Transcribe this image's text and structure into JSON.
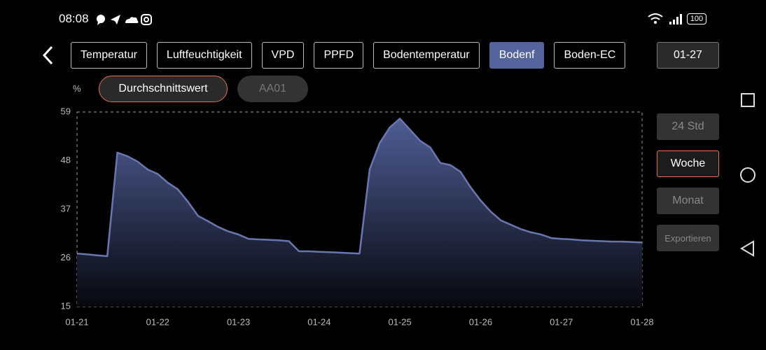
{
  "status_bar": {
    "time": "08:08",
    "battery": "100"
  },
  "tabs": [
    "Temperatur",
    "Luftfeuchtigkeit",
    "VPD",
    "PPFD",
    "Bodentemperatur",
    "Bodenf",
    "Boden-EC"
  ],
  "active_tab": 5,
  "date_button": "01-27",
  "unit": "%",
  "chips": [
    "Durchschnittswert",
    "AA01"
  ],
  "range_buttons": [
    "24 Std",
    "Woche",
    "Monat",
    "Exportieren"
  ],
  "active_range": 1,
  "chart_data": {
    "type": "area",
    "color": "#6877b0",
    "xticks": [
      "01-21",
      "01-22",
      "01-23",
      "01-24",
      "01-25",
      "01-26",
      "01-27",
      "01-28"
    ],
    "ylim": [
      15,
      59
    ],
    "yticks": [
      15,
      26,
      37,
      48,
      59
    ],
    "values": [
      27,
      26.8,
      26.6,
      26.4,
      49.8,
      49,
      47.8,
      46,
      45,
      43,
      41.5,
      38.7,
      35.5,
      34.3,
      33,
      32,
      31.3,
      30.3,
      30.2,
      30.1,
      30,
      29.8,
      27.5,
      27.5,
      27.4,
      27.3,
      27.2,
      27.1,
      27,
      46,
      52,
      55.5,
      57.5,
      55,
      52.5,
      51,
      47.5,
      47,
      45.5,
      42,
      39,
      36.5,
      34.5,
      33.5,
      32.5,
      31.8,
      31.3,
      30.5,
      30.3,
      30.2,
      30,
      29.9,
      29.8,
      29.7,
      29.7,
      29.6,
      29.5
    ]
  }
}
